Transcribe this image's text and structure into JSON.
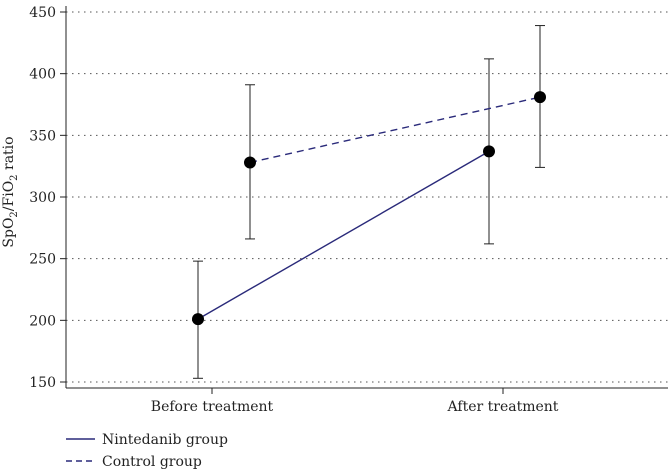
{
  "chart_data": {
    "type": "line",
    "categories": [
      "Before treatment",
      "After treatment"
    ],
    "ylabel": {
      "main": "SpO",
      "sub1": "2",
      "mid": "/FiO",
      "sub2": "2",
      "rest": " ratio"
    },
    "ylim": [
      140,
      450
    ],
    "yticks": [
      150,
      200,
      250,
      300,
      350,
      400,
      450
    ],
    "grid": "horizontal-dotted",
    "legend_position": "bottom-left",
    "series": [
      {
        "name": "Nintedanib group",
        "style": "solid",
        "color": "#2a2a7a",
        "values": [
          201,
          337
        ],
        "lower": [
          153,
          262
        ],
        "upper": [
          248,
          412
        ]
      },
      {
        "name": "Control group",
        "style": "dashed",
        "color": "#2a2a7a",
        "values": [
          328,
          381
        ],
        "lower": [
          266,
          324
        ],
        "upper": [
          391,
          439
        ]
      }
    ]
  }
}
